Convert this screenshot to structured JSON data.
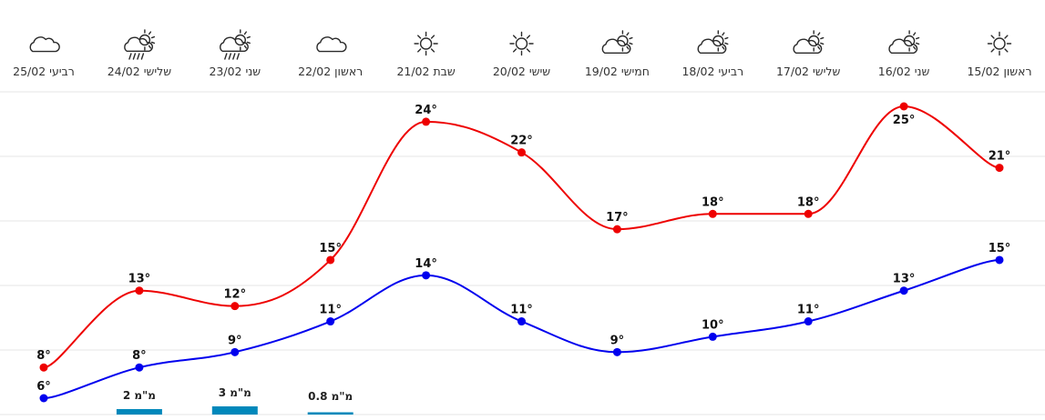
{
  "chart_data": {
    "type": "line",
    "title": "",
    "xlabel": "",
    "ylabel": "",
    "grid": true,
    "days": [
      {
        "label": "ראשון 15/02",
        "icon": "sun-icon",
        "high": 21,
        "low": 15,
        "rain": null
      },
      {
        "label": "שני 16/02",
        "icon": "partly-cloudy-icon",
        "high": 25,
        "low": 13,
        "rain": null
      },
      {
        "label": "שלישי 17/02",
        "icon": "partly-cloudy-icon",
        "high": 18,
        "low": 11,
        "rain": null
      },
      {
        "label": "רביעי 18/02",
        "icon": "partly-cloudy-icon",
        "high": 18,
        "low": 10,
        "rain": null
      },
      {
        "label": "חמישי 19/02",
        "icon": "partly-cloudy-icon",
        "high": 17,
        "low": 9,
        "rain": null
      },
      {
        "label": "שישי 20/02",
        "icon": "sun-icon",
        "high": 22,
        "low": 11,
        "rain": null
      },
      {
        "label": "שבת 21/02",
        "icon": "sun-icon",
        "high": 24,
        "low": 14,
        "rain": null
      },
      {
        "label": "ראשון 22/02",
        "icon": "cloud-icon",
        "high": 15,
        "low": 11,
        "rain": 0.8
      },
      {
        "label": "שני 23/02",
        "icon": "rain-sun-icon",
        "high": 12,
        "low": 9,
        "rain": 3
      },
      {
        "label": "שלישי 24/02",
        "icon": "rain-sun-icon",
        "high": 13,
        "low": 8,
        "rain": 2
      },
      {
        "label": "רביעי 25/02",
        "icon": "cloud-icon",
        "high": 8,
        "low": 6,
        "rain": null
      }
    ],
    "temp_suffix": "°",
    "rain_unit": "מ\"מ",
    "series": [
      {
        "key": "high",
        "color": "#ee0000"
      },
      {
        "key": "low",
        "color": "#0000ee"
      }
    ],
    "rain_color": "#0088bb"
  }
}
